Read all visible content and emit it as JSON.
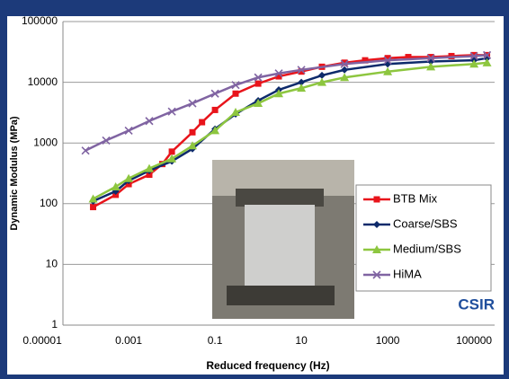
{
  "chart_data": {
    "type": "line",
    "y_label": "Dynamic Modulus (MPa)",
    "x_label": "Reduced frequency (Hz)",
    "annotation": "CSIR",
    "x_log": true,
    "y_log": true,
    "grid": true,
    "xlim": [
      3e-05,
      300000
    ],
    "ylim": [
      1,
      100000
    ],
    "xticks": [
      1e-05,
      0.001,
      0.1,
      10,
      1000,
      100000
    ],
    "yticks": [
      1,
      10,
      100,
      1000,
      10000,
      100000
    ],
    "series": [
      {
        "name": "BTB Mix",
        "color": "#e8141b",
        "marker": "square",
        "x": [
          0.00015,
          0.0005,
          0.001,
          0.003,
          0.006,
          0.01,
          0.03,
          0.05,
          0.1,
          0.3,
          1,
          3,
          10,
          30,
          100,
          300,
          1000,
          3000,
          10000,
          30000,
          100000,
          200000
        ],
        "values": [
          88,
          140,
          210,
          300,
          450,
          720,
          1500,
          2200,
          3500,
          6500,
          9500,
          12500,
          15000,
          18000,
          21000,
          23000,
          25000,
          26000,
          26000,
          27000,
          28000,
          28000
        ]
      },
      {
        "name": "Coarse/SBS",
        "color": "#0d2a6b",
        "marker": "diamond",
        "x": [
          0.00015,
          0.0005,
          0.001,
          0.003,
          0.01,
          0.03,
          0.1,
          0.3,
          1,
          3,
          10,
          30,
          100,
          1000,
          10000,
          100000,
          200000
        ],
        "values": [
          110,
          160,
          240,
          350,
          500,
          800,
          1700,
          3000,
          5000,
          7500,
          10000,
          13000,
          16000,
          20000,
          22000,
          23000,
          25000
        ]
      },
      {
        "name": "Medium/SBS",
        "color": "#8dc63f",
        "marker": "triangle",
        "x": [
          0.00015,
          0.0005,
          0.001,
          0.003,
          0.01,
          0.03,
          0.1,
          0.3,
          1,
          3,
          10,
          30,
          100,
          1000,
          10000,
          100000,
          200000
        ],
        "values": [
          120,
          190,
          260,
          380,
          550,
          900,
          1600,
          3200,
          4500,
          6500,
          8000,
          10000,
          12000,
          15000,
          18000,
          20000,
          21000
        ]
      },
      {
        "name": "HiMA",
        "color": "#8064a2",
        "marker": "x",
        "x": [
          0.0001,
          0.0003,
          0.001,
          0.003,
          0.01,
          0.03,
          0.1,
          0.3,
          1,
          3,
          10,
          100,
          1000,
          10000,
          100000,
          200000
        ],
        "values": [
          750,
          1100,
          1600,
          2300,
          3300,
          4500,
          6500,
          9000,
          12000,
          14000,
          16000,
          20000,
          23000,
          25000,
          27000,
          28000
        ]
      }
    ]
  }
}
